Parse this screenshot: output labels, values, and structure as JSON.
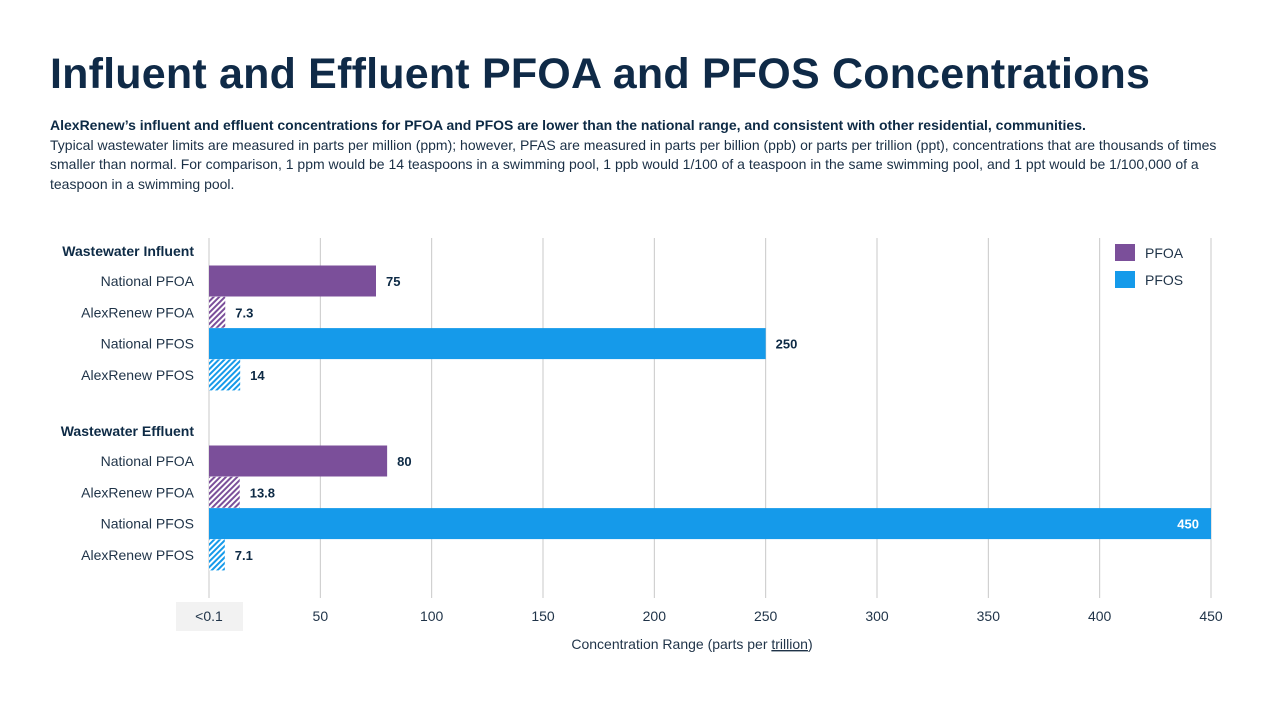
{
  "header": {
    "title": "Influent and Effluent PFOA and PFOS Concentrations",
    "lead": "AlexRenew’s influent and effluent concentrations for PFOA and PFOS are lower than the national range, and consistent with other residential, communities.",
    "body": "Typical wastewater limits are measured in parts per million (ppm); however, PFAS are measured in parts per billion (ppb) or parts per trillion (ppt), concentrations that are thousands of times smaller than normal. For comparison, 1 ppm would be 14 teaspoons in a swimming pool, 1 ppb would 1/100 of a teaspoon in the same swimming pool, and 1 ppt would be 1/100,000 of a teaspoon in a swimming pool."
  },
  "colors": {
    "pfoa": "#7b4f9a",
    "pfos": "#159aea",
    "grid": "#c8c8c8",
    "text": "#0d2a45"
  },
  "chart_data": {
    "type": "bar",
    "orientation": "horizontal",
    "title": "Influent and Effluent PFOA and PFOS Concentrations",
    "xlabel_prefix": "Concentration Range (parts per ",
    "xlabel_underlined": "trillion",
    "xlabel_suffix": ")",
    "xlim": [
      0,
      450
    ],
    "x_ticks": [
      0,
      50,
      100,
      150,
      200,
      250,
      300,
      350,
      400,
      450
    ],
    "x_tick_labels": [
      "<0.1",
      "50",
      "100",
      "150",
      "200",
      "250",
      "300",
      "350",
      "400",
      "450"
    ],
    "grid": true,
    "legend": {
      "position": "top-right",
      "entries": [
        {
          "name": "PFOA",
          "color": "#7b4f9a"
        },
        {
          "name": "PFOS",
          "color": "#159aea"
        }
      ]
    },
    "groups": [
      {
        "name": "Wastewater Influent",
        "bars": [
          {
            "label": "National PFOA",
            "value": 75,
            "series": "PFOA",
            "hatched": false,
            "value_label": "75"
          },
          {
            "label": "AlexRenew PFOA",
            "value": 7.3,
            "series": "PFOA",
            "hatched": true,
            "value_label": "7.3"
          },
          {
            "label": "National PFOS",
            "value": 250,
            "series": "PFOS",
            "hatched": false,
            "value_label": "250"
          },
          {
            "label": "AlexRenew PFOS",
            "value": 14,
            "series": "PFOS",
            "hatched": true,
            "value_label": "14"
          }
        ]
      },
      {
        "name": "Wastewater Effluent",
        "bars": [
          {
            "label": "National PFOA",
            "value": 80,
            "series": "PFOA",
            "hatched": false,
            "value_label": "80"
          },
          {
            "label": "AlexRenew PFOA",
            "value": 13.8,
            "series": "PFOA",
            "hatched": true,
            "value_label": "13.8"
          },
          {
            "label": "National PFOS",
            "value": 450,
            "series": "PFOS",
            "hatched": false,
            "value_label": "450"
          },
          {
            "label": "AlexRenew PFOS",
            "value": 7.1,
            "series": "PFOS",
            "hatched": true,
            "value_label": "7.1"
          }
        ]
      }
    ]
  }
}
